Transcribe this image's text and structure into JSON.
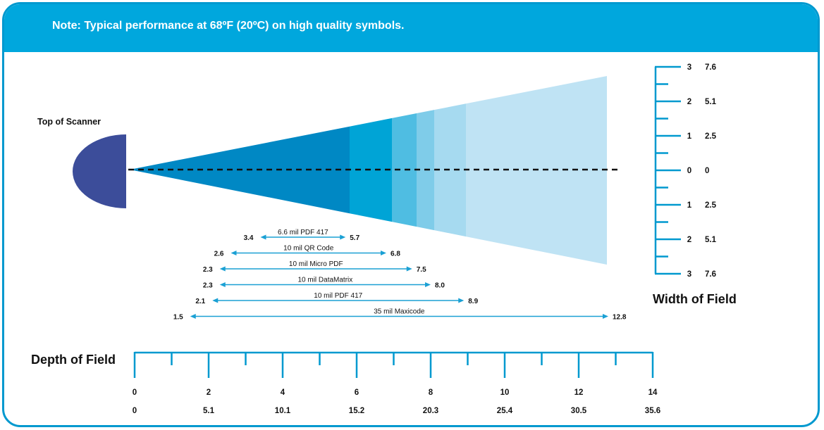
{
  "header": {
    "note": "Note: Typical performance at 68ºF (20ºC) on high quality symbols."
  },
  "scanner": {
    "label": "Top of Scanner"
  },
  "colors": {
    "frame": "#0099cf",
    "banner": "#00a7dd",
    "scanner": "#3c4d9a",
    "beam_zones": [
      "#0088c4",
      "#00a4d6",
      "#4fbde2",
      "#7fcce9",
      "#a6daf0",
      "#bfe3f4"
    ],
    "arrow": "#1aa0d4",
    "highlight": "#f26522"
  },
  "depth_scale": {
    "title": "Depth of Field",
    "inches": [
      "0",
      "2",
      "4",
      "6",
      "8",
      "10",
      "12",
      "14"
    ],
    "cm": [
      "0",
      "5.1",
      "10.1",
      "15.2",
      "20.3",
      "25.4",
      "30.5",
      "35.6"
    ]
  },
  "width_scale": {
    "title": "Width of Field",
    "ticks": [
      {
        "value": 3,
        "in": "3",
        "cm": "7.6"
      },
      {
        "value": 2,
        "in": "2",
        "cm": "5.1"
      },
      {
        "value": 1,
        "in": "1",
        "cm": "2.5"
      },
      {
        "value": 0,
        "in": "0",
        "cm": "0"
      },
      {
        "value": -1,
        "in": "1",
        "cm": "2.5"
      },
      {
        "value": -2,
        "in": "2",
        "cm": "5.1"
      },
      {
        "value": -3,
        "in": "3",
        "cm": "7.6"
      }
    ]
  },
  "ranges": [
    {
      "symbol": "6.6 mil PDF 417",
      "near": 3.4,
      "far": 5.7,
      "near_label": "3.4",
      "far_label": "5.7",
      "highlight": false
    },
    {
      "symbol": "10 mil QR Code",
      "near": 2.6,
      "far": 6.8,
      "near_label": "2.6",
      "far_label": "6.8",
      "highlight": false
    },
    {
      "symbol": "10 mil Micro PDF",
      "near": 2.3,
      "far": 7.5,
      "near_label": "2.3",
      "far_label": "7.5",
      "highlight": false
    },
    {
      "symbol": "10 mil DataMatrix",
      "near": 2.3,
      "far": 8.0,
      "near_label": "2.3",
      "far_label": "8.0",
      "highlight": true
    },
    {
      "symbol": "10 mil PDF 417",
      "near": 2.1,
      "far": 8.9,
      "near_label": "2.1",
      "far_label": "8.9",
      "highlight": false
    },
    {
      "symbol": "35 mil Maxicode",
      "near": 1.5,
      "far": 12.8,
      "near_label": "1.5",
      "far_label": "12.8",
      "highlight": false
    }
  ]
}
